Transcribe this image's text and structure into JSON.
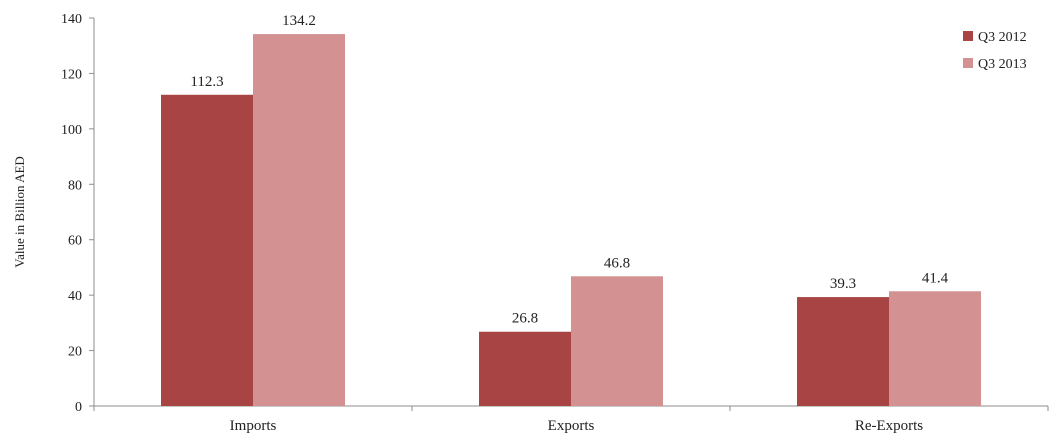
{
  "chart_data": {
    "type": "bar",
    "title": "",
    "xlabel": "",
    "ylabel": "Value in Billion AED",
    "categories": [
      "Imports",
      "Exports",
      "Re-Exports"
    ],
    "series": [
      {
        "name": "Q3 2012",
        "color": "#a84444",
        "values": [
          112.3,
          26.8,
          39.3
        ]
      },
      {
        "name": "Q3 2013",
        "color": "#d49191",
        "values": [
          134.2,
          46.8,
          41.4
        ]
      }
    ],
    "ylim": [
      0,
      140
    ],
    "yticks": [
      0,
      20,
      40,
      60,
      80,
      100,
      120,
      140
    ],
    "grid": false,
    "legend_position": "top-right",
    "data_labels": true
  }
}
